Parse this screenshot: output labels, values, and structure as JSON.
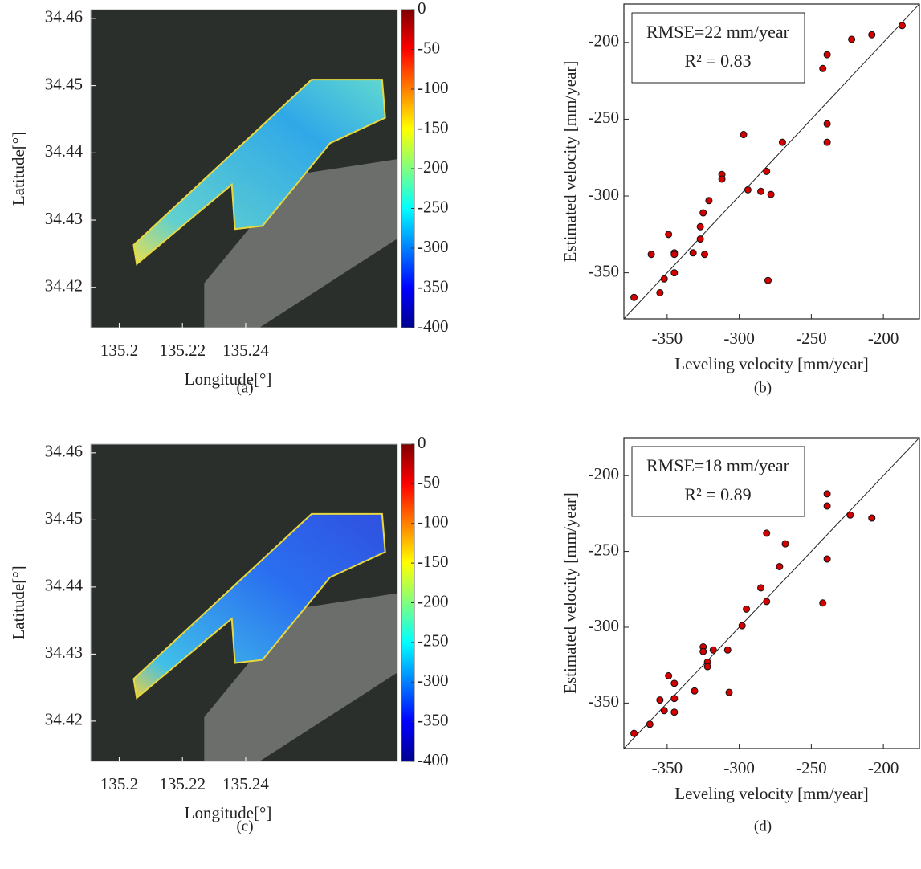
{
  "chart_data": [
    {
      "type": "map",
      "label": "(a)",
      "xlabel": "Longitude[°]",
      "ylabel": "Latitude[°]",
      "xlim": [
        135.191,
        135.288
      ],
      "ylim": [
        34.414,
        34.4613
      ],
      "xticks": [
        135.2,
        135.22,
        135.24
      ],
      "yticks": [
        34.42,
        34.43,
        34.44,
        34.45,
        34.46
      ],
      "colorbar": {
        "lim": [
          -400,
          0
        ],
        "ticks": [
          0,
          -50,
          -100,
          -150,
          -200,
          -250,
          -300,
          -350,
          -400
        ],
        "colormap": "jet"
      }
    },
    {
      "type": "scatter",
      "label": "(b)",
      "xlabel": "Leveling velocity [mm/year]",
      "ylabel": "Estimated velocity [mm/year]",
      "xlim": [
        -380,
        -175
      ],
      "ylim": [
        -380,
        -175
      ],
      "xticks": [
        -350,
        -300,
        -250,
        -200
      ],
      "yticks": [
        -200,
        -250,
        -300,
        -350
      ],
      "annotation": [
        "RMSE=22 mm/year",
        "R² = 0.83"
      ],
      "identity_line": true,
      "color": "#d40000",
      "x": [
        -373,
        -361,
        -355,
        -352,
        -349,
        -345,
        -345,
        -345,
        -332,
        -327,
        -327,
        -325,
        -324,
        -321,
        -312,
        -312,
        -297,
        -294,
        -285,
        -281,
        -280,
        -278,
        -270,
        -242,
        -239,
        -239,
        -239,
        -222,
        -208,
        -187
      ],
      "values": [
        -366,
        -338,
        -363,
        -354,
        -325,
        -337,
        -338,
        -350,
        -337,
        -328,
        -320,
        -311,
        -338,
        -303,
        -286,
        -289,
        -260,
        -296,
        -297,
        -284,
        -355,
        -299,
        -265,
        -217,
        -208,
        -253,
        -265,
        -198,
        -195,
        -189
      ]
    },
    {
      "type": "map",
      "label": "(c)",
      "xlabel": "Longitude[°]",
      "ylabel": "Latitude[°]",
      "xlim": [
        135.191,
        135.288
      ],
      "ylim": [
        34.414,
        34.4613
      ],
      "xticks": [
        135.2,
        135.22,
        135.24
      ],
      "yticks": [
        34.42,
        34.43,
        34.44,
        34.45,
        34.46
      ],
      "colorbar": {
        "lim": [
          -400,
          0
        ],
        "ticks": [
          0,
          -50,
          -100,
          -150,
          -200,
          -250,
          -300,
          -350,
          -400
        ],
        "colormap": "jet"
      }
    },
    {
      "type": "scatter",
      "label": "(d)",
      "xlabel": "Leveling velocity [mm/year]",
      "ylabel": "Estimated velocity [mm/year]",
      "xlim": [
        -380,
        -175
      ],
      "ylim": [
        -380,
        -175
      ],
      "xticks": [
        -350,
        -300,
        -250,
        -200
      ],
      "yticks": [
        -200,
        -250,
        -300,
        -350
      ],
      "annotation": [
        "RMSE=18 mm/year",
        "R² = 0.89"
      ],
      "identity_line": true,
      "color": "#d40000",
      "x": [
        -373,
        -362,
        -355,
        -352,
        -349,
        -345,
        -345,
        -345,
        -331,
        -325,
        -325,
        -322,
        -322,
        -318,
        -308,
        -307,
        -298,
        -295,
        -285,
        -281,
        -281,
        -272,
        -268,
        -242,
        -239,
        -239,
        -239,
        -223,
        -208
      ],
      "values": [
        -370,
        -364,
        -348,
        -355,
        -332,
        -337,
        -347,
        -356,
        -342,
        -313,
        -316,
        -323,
        -326,
        -315,
        -315,
        -343,
        -299,
        -288,
        -274,
        -283,
        -238,
        -260,
        -245,
        -284,
        -212,
        -220,
        -255,
        -226,
        -228
      ]
    }
  ]
}
